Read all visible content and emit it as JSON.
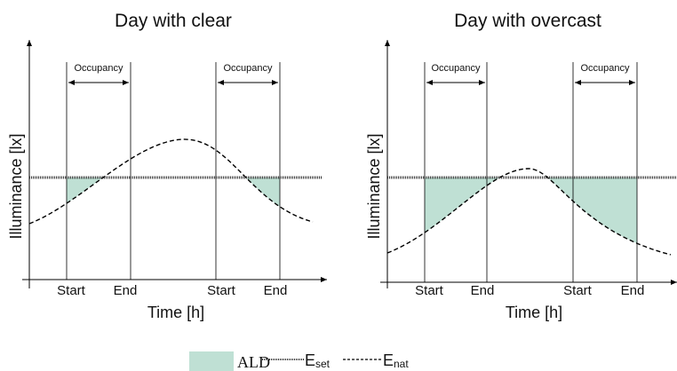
{
  "panels": [
    {
      "title": "Day with clear",
      "y_label": "Illuminance [lx]",
      "x_label": "Time [h]",
      "occupancy": [
        "Occupancy",
        "Occupancy"
      ],
      "x_ticks": [
        "Start",
        "End",
        "Start",
        "End"
      ]
    },
    {
      "title": "Day with overcast",
      "y_label": "Illuminance [lx]",
      "x_label": "Time [h]",
      "occupancy": [
        "Occupancy",
        "Occupancy"
      ],
      "x_ticks": [
        "Start",
        "End",
        "Start",
        "End"
      ]
    }
  ],
  "legend": {
    "ald": "ALD",
    "eset": {
      "main": "E",
      "sub": "set"
    },
    "enat": {
      "main": "E",
      "sub": "nat"
    }
  }
}
